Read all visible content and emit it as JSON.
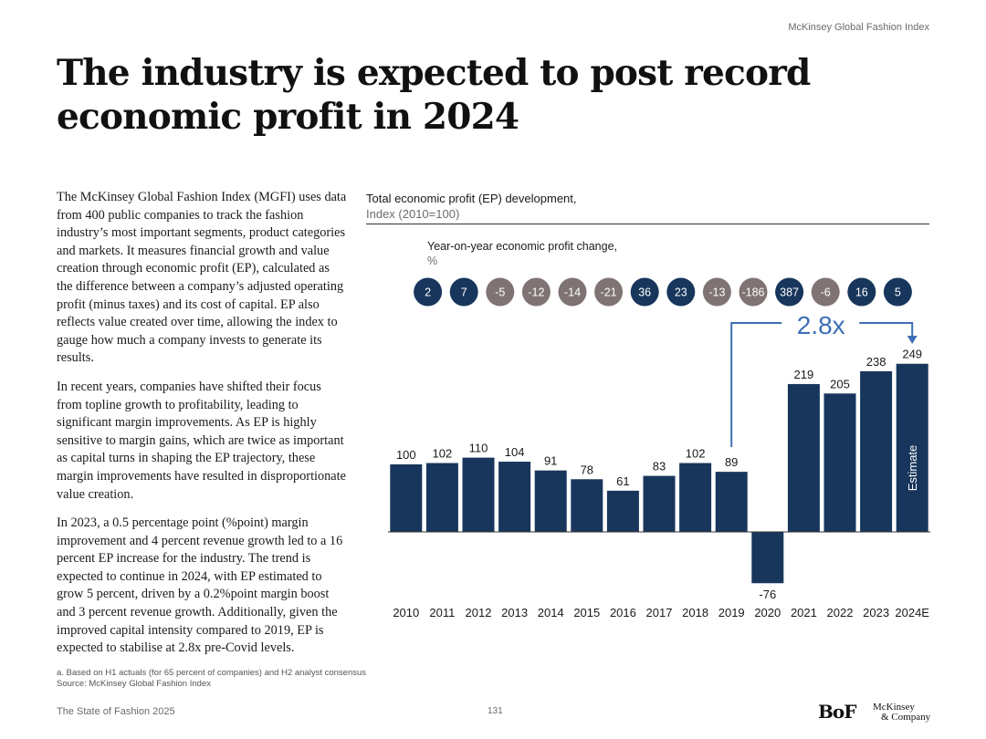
{
  "header": {
    "index_name": "McKinsey Global Fashion Index"
  },
  "title": "The industry is expected to post record economic profit in 2024",
  "body": {
    "paragraphs": [
      "The McKinsey Global Fashion Index (MGFI) uses data from 400 public companies to track the fashion industry’s most important segments, product categories and markets. It measures financial growth and value creation through economic profit (EP), calculated as the difference between a company’s adjusted operating profit (minus taxes) and its cost of capital. EP also reflects value created over time, allowing the index to gauge how much a company invests to generate its results.",
      "In recent years, companies have shifted their focus from topline growth to profitability, leading to significant margin improvements. As EP is highly sensitive to margin gains, which are twice as important as capital turns in shaping the EP trajectory, these margin improvements have resulted in disproportionate value creation.",
      "In 2023, a 0.5 percentage point (%point) margin improvement and 4 percent revenue growth led to a 16 percent EP increase for the industry. The trend is expected to continue in 2024, with EP estimated to grow 5 percent, driven by a 0.2%point margin boost and 3 percent revenue growth. Additionally, given the improved capital intensity compared to 2019, EP is expected to stabilise at 2.8x pre-Covid levels."
    ]
  },
  "chart_data": {
    "type": "bar",
    "title": "Total economic profit (EP) development,",
    "subtitle": "Index (2010=100)",
    "categories": [
      "2010",
      "2011",
      "2012",
      "2013",
      "2014",
      "2015",
      "2016",
      "2017",
      "2018",
      "2019",
      "2020",
      "2021",
      "2022",
      "2023",
      "2024E"
    ],
    "values": [
      100,
      102,
      110,
      104,
      91,
      78,
      61,
      83,
      102,
      89,
      -76,
      219,
      205,
      238,
      249
    ],
    "value_labels": [
      "100",
      "102",
      "110",
      "104",
      "91",
      "78",
      "61",
      "83",
      "102",
      "89",
      "-76",
      "219",
      "205",
      "238",
      "249"
    ],
    "yoy_title": "Year-on-year economic profit change,",
    "yoy_unit": "%",
    "yoy_changes": [
      2,
      7,
      -5,
      -12,
      -14,
      -21,
      36,
      23,
      -13,
      -186,
      387,
      -6,
      16,
      5
    ],
    "yoy_labels": [
      "2",
      "7",
      "-5",
      "-12",
      "-14",
      "-21",
      "36",
      "23",
      "-13",
      "-186",
      "387",
      "-6",
      "16",
      "5"
    ],
    "annotation": {
      "text": "2.8x",
      "from": "2019",
      "to": "2024E"
    },
    "estimate_label": "Estimate",
    "ylim": [
      -76,
      249
    ],
    "colors": {
      "bar": "#18365c",
      "positive": "#18365c",
      "negative": "#7f7473",
      "annotation": "#3e6fb5"
    }
  },
  "footnote": {
    "note": "a. Based on H1 actuals (for 65 percent of companies) and H2 analyst consensus",
    "source": "Source: McKinsey Global Fashion Index"
  },
  "footer": {
    "report": "The State of Fashion 2025",
    "page": "131",
    "bof_logo": "BoF",
    "mckinsey_logo_line1": "McKinsey",
    "mckinsey_logo_line2": "& Company"
  }
}
